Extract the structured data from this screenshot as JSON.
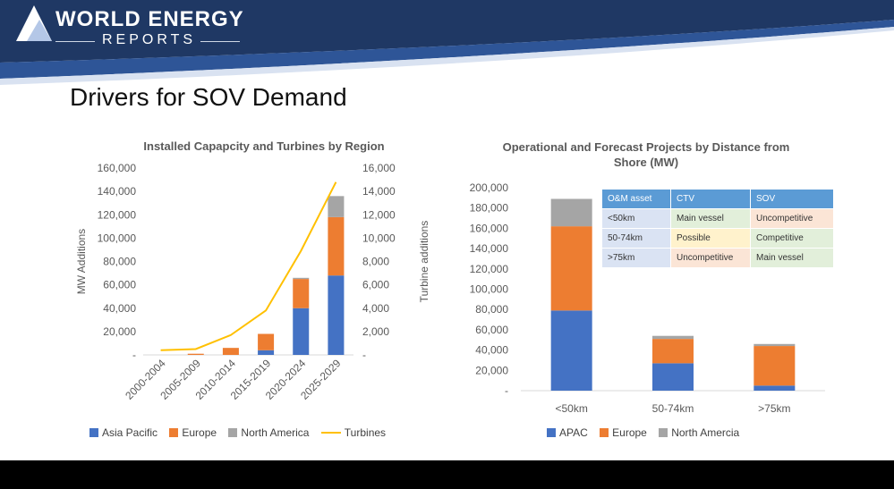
{
  "header": {
    "logo_title": "WORLD ENERGY",
    "logo_subtitle": "REPORTS",
    "slide_title": "Drivers for SOV Demand"
  },
  "colors": {
    "asia_pacific": "#4472c4",
    "europe": "#ed7d31",
    "north_america": "#a5a5a5",
    "turbines": "#ffc000",
    "banner_dark": "#1f3864",
    "banner_mid": "#2e5597",
    "table_header": "#5b9bd5",
    "cell_blue": "#dae3f3",
    "cell_green": "#e2efda",
    "cell_red": "#fbe5d6",
    "cell_yellow": "#fff2cc"
  },
  "chart_data": [
    {
      "type": "bar",
      "stacked": true,
      "title": "Installed Capapcity and Turbines by Region",
      "xlabel": "",
      "ylabel": "MW Additions",
      "y2label": "Turbine additions",
      "categories": [
        "2000-2004",
        "2005-2009",
        "2010-2014",
        "2015-2019",
        "2020-2024",
        "2025-2029"
      ],
      "ylim": [
        0,
        160000
      ],
      "y2lim": [
        0,
        16000
      ],
      "yticks": [
        "-",
        "20,000",
        "40,000",
        "60,000",
        "80,000",
        "100,000",
        "120,000",
        "140,000",
        "160,000"
      ],
      "y2ticks": [
        "-",
        "2,000",
        "4,000",
        "6,000",
        "8,000",
        "10,000",
        "12,000",
        "14,000",
        "16,000"
      ],
      "series": [
        {
          "name": "Asia Pacific",
          "values": [
            0,
            0,
            0,
            4000,
            40000,
            68000
          ]
        },
        {
          "name": "Europe",
          "values": [
            0,
            1000,
            6000,
            14000,
            25000,
            50000
          ]
        },
        {
          "name": "North America",
          "values": [
            0,
            0,
            0,
            0,
            1000,
            18000
          ]
        }
      ],
      "line": {
        "name": "Turbines",
        "axis": "secondary",
        "values": [
          400,
          500,
          1700,
          3800,
          8900,
          14800
        ]
      },
      "legend": "bottom",
      "grid": false
    },
    {
      "type": "bar",
      "stacked": true,
      "title": "Operational and Forecast Projects by Distance from Shore (MW)",
      "xlabel": "",
      "ylabel": "",
      "categories": [
        "<50km",
        "50-74km",
        ">75km"
      ],
      "ylim": [
        0,
        200000
      ],
      "yticks": [
        "-",
        "20,000",
        "40,000",
        "60,000",
        "80,000",
        "100,000",
        "120,000",
        "140,000",
        "160,000",
        "180,000",
        "200,000"
      ],
      "series": [
        {
          "name": "APAC",
          "values": [
            79000,
            27000,
            5000
          ]
        },
        {
          "name": "Europe",
          "values": [
            83000,
            24000,
            39000
          ]
        },
        {
          "name": "North Amercia",
          "values": [
            27000,
            3000,
            2000
          ]
        }
      ],
      "legend": "bottom",
      "grid": false
    }
  ],
  "table": {
    "headers": [
      "O&M asset",
      "CTV",
      "SOV"
    ],
    "rows": [
      {
        "cells": [
          "<50km",
          "Main vessel",
          "Uncompetitive"
        ],
        "colors": [
          "#dae3f3",
          "#e2efda",
          "#fbe5d6"
        ]
      },
      {
        "cells": [
          "50-74km",
          "Possible",
          "Competitive"
        ],
        "colors": [
          "#dae3f3",
          "#fff2cc",
          "#e2efda"
        ]
      },
      {
        "cells": [
          ">75km",
          "Uncompetitive",
          "Main vessel"
        ],
        "colors": [
          "#dae3f3",
          "#fbe5d6",
          "#e2efda"
        ]
      }
    ]
  }
}
